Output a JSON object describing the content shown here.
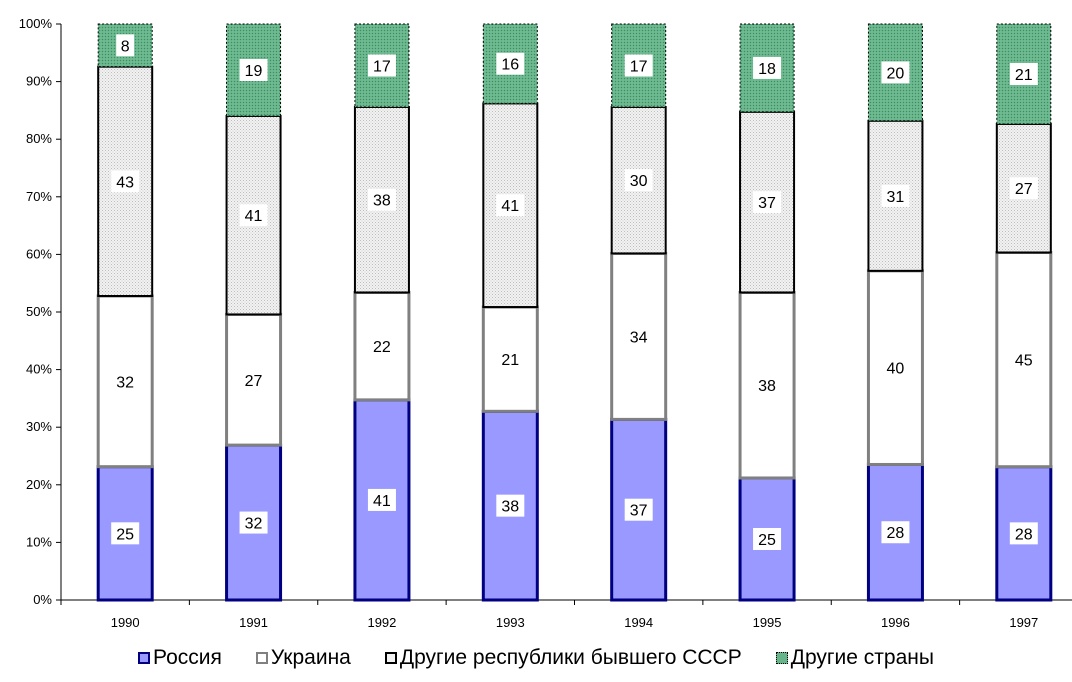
{
  "chart_data": {
    "type": "bar",
    "stacked": "percent",
    "categories": [
      "1990",
      "1991",
      "1992",
      "1993",
      "1994",
      "1995",
      "1996",
      "1997"
    ],
    "series": [
      {
        "name": "Россия",
        "values": [
          25,
          32,
          41,
          38,
          37,
          25,
          28,
          28
        ],
        "color": "#9999ff",
        "border": "#000080"
      },
      {
        "name": "Украина",
        "values": [
          32,
          27,
          22,
          21,
          34,
          38,
          40,
          45
        ],
        "color": "#ffffff",
        "border": "#808080"
      },
      {
        "name": "Другие республики бывшего СССР",
        "values": [
          43,
          41,
          38,
          41,
          30,
          37,
          31,
          27
        ],
        "color": "#eaeaea",
        "border": "#000000",
        "pattern": "dotted"
      },
      {
        "name": "Другие страны",
        "values": [
          8,
          19,
          17,
          16,
          17,
          18,
          20,
          21
        ],
        "color": "#5fae7f",
        "border": "#000000",
        "pattern": "dotted"
      }
    ],
    "y_ticks": [
      "0%",
      "10%",
      "20%",
      "30%",
      "40%",
      "50%",
      "60%",
      "70%",
      "80%",
      "90%",
      "100%"
    ],
    "ylim": [
      0,
      100
    ],
    "title": "",
    "xlabel": "",
    "ylabel": "",
    "grid": false,
    "legend_position": "bottom"
  }
}
